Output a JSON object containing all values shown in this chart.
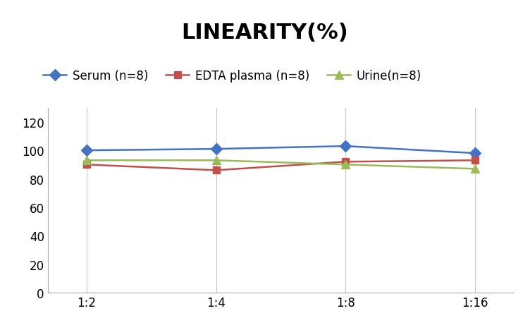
{
  "title": "LINEARITY(%)",
  "x_labels": [
    "1:2",
    "1:4",
    "1:8",
    "1:16"
  ],
  "x_positions": [
    0,
    1,
    2,
    3
  ],
  "series": [
    {
      "label": "Serum (n=8)",
      "values": [
        100,
        101,
        103,
        98
      ],
      "color": "#4472C4",
      "marker": "D",
      "markersize": 8,
      "linewidth": 1.8
    },
    {
      "label": "EDTA plasma (n=8)",
      "values": [
        90,
        86,
        92,
        93
      ],
      "color": "#C0504D",
      "marker": "s",
      "markersize": 7,
      "linewidth": 1.8
    },
    {
      "label": "Urine(n=8)",
      "values": [
        93,
        93,
        90,
        87
      ],
      "color": "#9BBB59",
      "marker": "^",
      "markersize": 8,
      "linewidth": 1.8
    }
  ],
  "ylim": [
    0,
    130
  ],
  "yticks": [
    0,
    20,
    40,
    60,
    80,
    100,
    120
  ],
  "grid_color": "#C8C8C8",
  "background_color": "#FFFFFF",
  "title_fontsize": 22,
  "tick_fontsize": 12,
  "legend_fontsize": 12
}
